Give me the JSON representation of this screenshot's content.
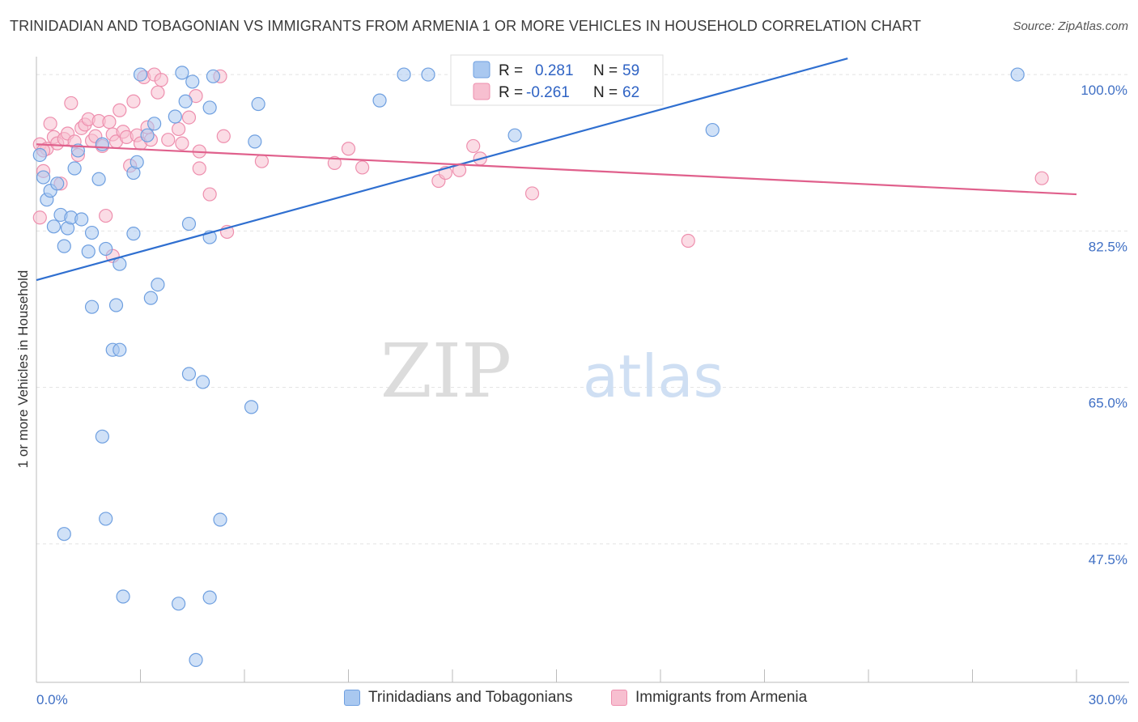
{
  "title": "TRINIDADIAN AND TOBAGONIAN VS IMMIGRANTS FROM ARMENIA 1 OR MORE VEHICLES IN HOUSEHOLD CORRELATION CHART",
  "source": "Source: ZipAtlas.com",
  "watermark": {
    "zip": "ZIP",
    "atlas": "atlas"
  },
  "colors": {
    "blue_fill": "#a9c8f0",
    "blue_stroke": "#6e9fe0",
    "blue_line": "#2f6fd0",
    "pink_fill": "#f7bfd0",
    "pink_stroke": "#ee8fae",
    "pink_line": "#e0608c",
    "tick": "#3f6fc4",
    "grid": "#e3e3e3"
  },
  "legend": {
    "r_label": "R =",
    "n_label": "N =",
    "series": [
      {
        "r": "0.281",
        "n": "59"
      },
      {
        "r": "-0.261",
        "n": "62"
      }
    ]
  },
  "chart_data": {
    "type": "scatter",
    "title": "TRINIDADIAN AND TOBAGONIAN VS IMMIGRANTS FROM ARMENIA 1 OR MORE VEHICLES IN HOUSEHOLD CORRELATION CHART",
    "xlabel": "",
    "ylabel": "1 or more Vehicles in Household",
    "xlim": [
      0,
      30
    ],
    "ylim": [
      32,
      102
    ],
    "x_tick_labels": [
      "0.0%",
      "30.0%"
    ],
    "y_ticks": [
      100.0,
      82.5,
      65.0,
      47.5
    ],
    "y_tick_labels": [
      "100.0%",
      "82.5%",
      "65.0%",
      "47.5%"
    ],
    "series": [
      {
        "name": "Trinidadians and Tobagonians",
        "r": 0.281,
        "n": 59,
        "trend": {
          "x": [
            0,
            23.4
          ],
          "y": [
            77.0,
            101.8
          ]
        },
        "points": [
          [
            0.1,
            91.0
          ],
          [
            0.2,
            88.5
          ],
          [
            0.3,
            86.0
          ],
          [
            0.4,
            87.0
          ],
          [
            0.5,
            83.0
          ],
          [
            0.6,
            87.8
          ],
          [
            0.7,
            84.3
          ],
          [
            0.8,
            80.8
          ],
          [
            0.9,
            82.8
          ],
          [
            1.0,
            84.0
          ],
          [
            1.1,
            89.5
          ],
          [
            1.2,
            91.5
          ],
          [
            1.5,
            80.2
          ],
          [
            1.6,
            82.3
          ],
          [
            1.8,
            88.3
          ],
          [
            1.9,
            92.2
          ],
          [
            1.3,
            83.8
          ],
          [
            2.0,
            80.5
          ],
          [
            2.4,
            78.8
          ],
          [
            2.8,
            89.0
          ],
          [
            2.9,
            90.2
          ],
          [
            2.8,
            82.2
          ],
          [
            3.2,
            93.2
          ],
          [
            3.4,
            94.5
          ],
          [
            3.5,
            76.5
          ],
          [
            3.3,
            75.0
          ],
          [
            2.3,
            74.2
          ],
          [
            1.6,
            74.0
          ],
          [
            2.2,
            69.2
          ],
          [
            2.4,
            69.2
          ],
          [
            4.0,
            95.3
          ],
          [
            4.2,
            100.2
          ],
          [
            4.4,
            83.3
          ],
          [
            4.3,
            97.0
          ],
          [
            4.5,
            99.2
          ],
          [
            5.0,
            96.3
          ],
          [
            5.1,
            99.8
          ],
          [
            5.0,
            81.8
          ],
          [
            6.3,
            92.5
          ],
          [
            6.4,
            96.7
          ],
          [
            4.4,
            66.5
          ],
          [
            4.8,
            65.6
          ],
          [
            6.2,
            62.8
          ],
          [
            1.9,
            59.5
          ],
          [
            3.0,
            100.0
          ],
          [
            2.0,
            50.3
          ],
          [
            0.8,
            48.6
          ],
          [
            5.3,
            50.2
          ],
          [
            2.5,
            41.6
          ],
          [
            4.1,
            40.8
          ],
          [
            5.0,
            41.5
          ],
          [
            4.6,
            34.5
          ],
          [
            9.9,
            97.1
          ],
          [
            10.6,
            100.0
          ],
          [
            11.3,
            100.0
          ],
          [
            13.5,
            99.5
          ],
          [
            13.8,
            93.2
          ],
          [
            19.5,
            93.8
          ],
          [
            28.3,
            100.0
          ]
        ]
      },
      {
        "name": "Immigrants from Armenia",
        "r": -0.261,
        "n": 62,
        "trend": {
          "x": [
            0,
            30
          ],
          "y": [
            92.2,
            86.6
          ]
        },
        "points": [
          [
            0.1,
            92.2
          ],
          [
            0.1,
            84.0
          ],
          [
            0.2,
            89.2
          ],
          [
            0.3,
            91.7
          ],
          [
            0.4,
            94.5
          ],
          [
            0.5,
            93.0
          ],
          [
            0.6,
            92.3
          ],
          [
            0.7,
            87.8
          ],
          [
            0.8,
            92.8
          ],
          [
            0.9,
            93.4
          ],
          [
            1.0,
            96.8
          ],
          [
            1.1,
            92.5
          ],
          [
            1.2,
            91.0
          ],
          [
            1.3,
            94.0
          ],
          [
            1.4,
            94.4
          ],
          [
            1.5,
            95.0
          ],
          [
            1.6,
            92.6
          ],
          [
            1.7,
            93.1
          ],
          [
            1.8,
            94.8
          ],
          [
            1.9,
            92.0
          ],
          [
            2.0,
            84.2
          ],
          [
            2.1,
            94.7
          ],
          [
            2.2,
            93.3
          ],
          [
            2.3,
            92.5
          ],
          [
            2.4,
            96.0
          ],
          [
            2.5,
            93.6
          ],
          [
            2.6,
            93.0
          ],
          [
            2.7,
            89.8
          ],
          [
            2.8,
            97.0
          ],
          [
            2.9,
            93.2
          ],
          [
            3.0,
            92.3
          ],
          [
            3.1,
            99.7
          ],
          [
            3.2,
            94.1
          ],
          [
            3.3,
            92.7
          ],
          [
            3.4,
            100.0
          ],
          [
            3.5,
            98.0
          ],
          [
            3.6,
            99.4
          ],
          [
            3.8,
            92.7
          ],
          [
            4.1,
            93.9
          ],
          [
            4.2,
            92.3
          ],
          [
            4.4,
            95.2
          ],
          [
            4.6,
            97.6
          ],
          [
            4.7,
            91.4
          ],
          [
            4.7,
            89.5
          ],
          [
            5.0,
            86.6
          ],
          [
            5.3,
            99.8
          ],
          [
            5.4,
            93.1
          ],
          [
            5.5,
            82.4
          ],
          [
            2.2,
            79.7
          ],
          [
            6.5,
            90.3
          ],
          [
            8.6,
            90.1
          ],
          [
            9.0,
            91.7
          ],
          [
            9.4,
            89.6
          ],
          [
            11.6,
            88.1
          ],
          [
            11.8,
            89.0
          ],
          [
            12.2,
            89.3
          ],
          [
            12.6,
            92.0
          ],
          [
            12.8,
            90.6
          ],
          [
            14.3,
            86.7
          ],
          [
            18.8,
            81.4
          ],
          [
            29.0,
            88.4
          ],
          [
            0.2,
            91.5
          ]
        ]
      }
    ]
  },
  "bottom_legend": [
    {
      "label": "Trinidadians and Tobagonians"
    },
    {
      "label": "Immigrants from Armenia"
    }
  ]
}
